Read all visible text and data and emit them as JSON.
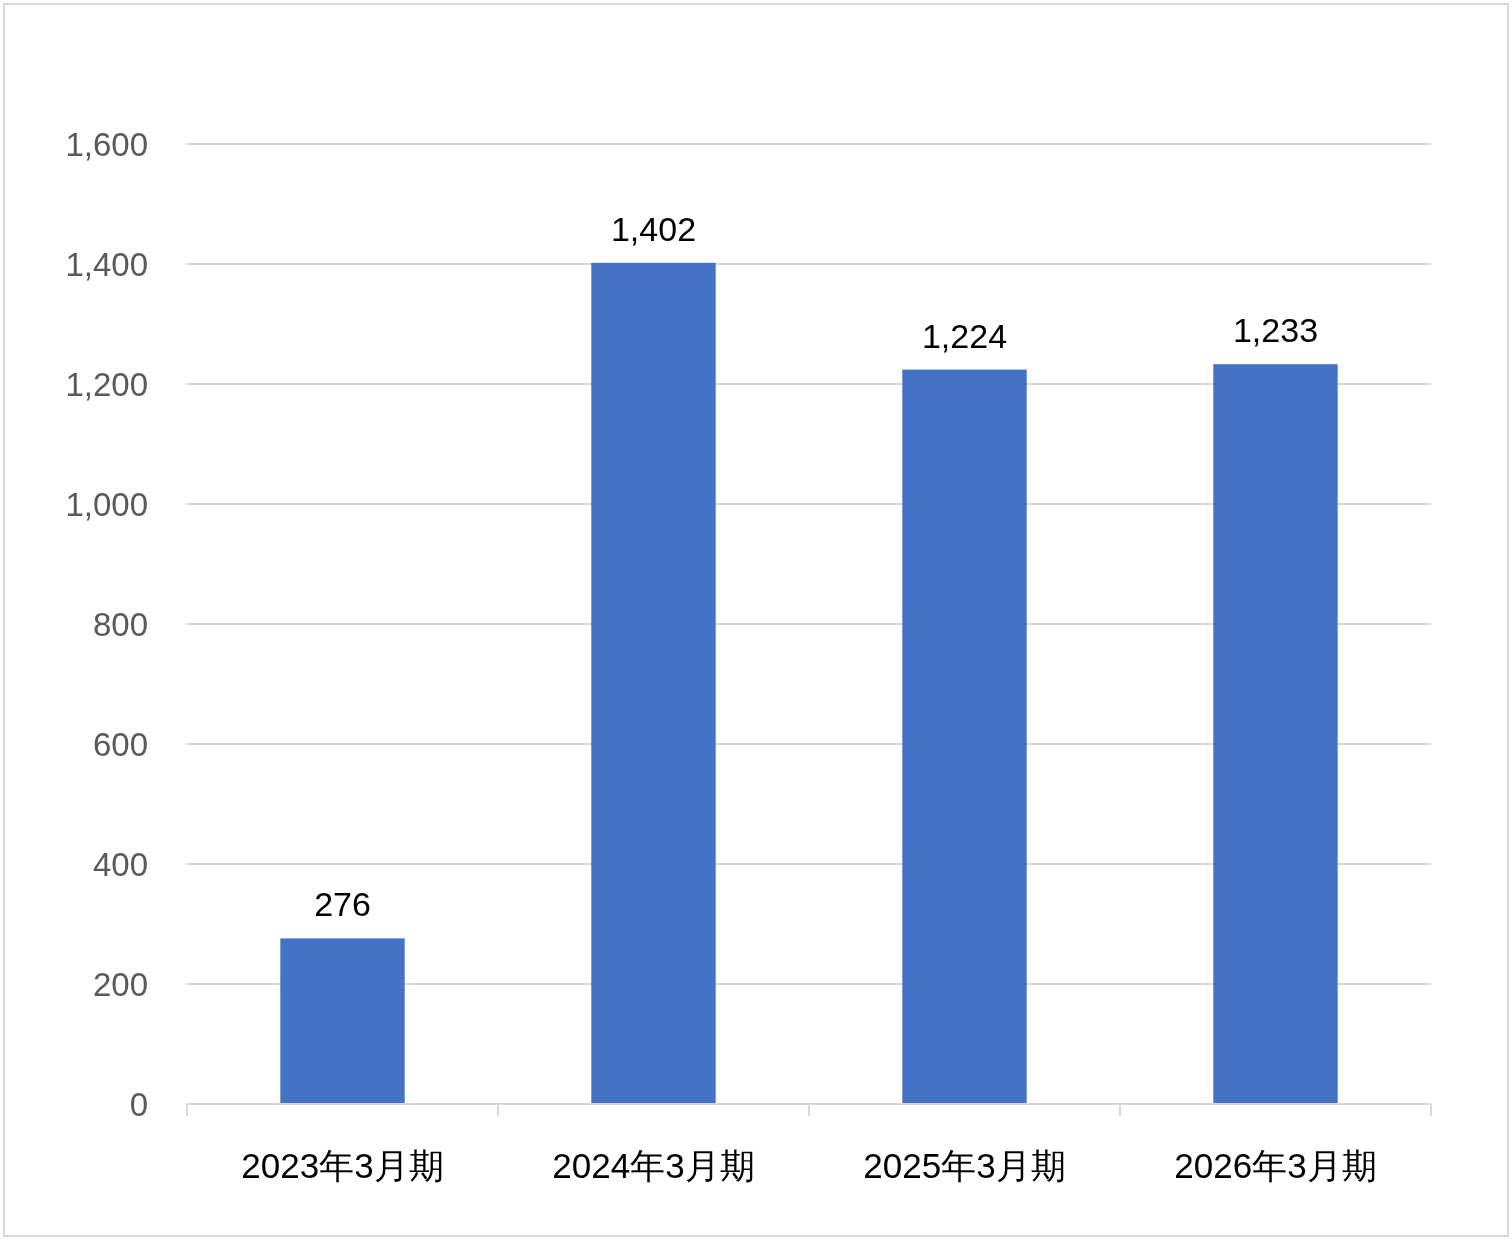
{
  "chart_data": {
    "type": "bar",
    "categories": [
      "2023年3月期",
      "2024年3月期",
      "2025年3月期",
      "2026年3月期"
    ],
    "values": [
      276,
      1402,
      1224,
      1233
    ],
    "color": "#4472c4",
    "ylim": [
      0,
      1600
    ],
    "yticks": [
      {
        "value": 0,
        "label": "0"
      },
      {
        "value": 200,
        "label": "200"
      },
      {
        "value": 400,
        "label": "400"
      },
      {
        "value": 600,
        "label": "600"
      },
      {
        "value": 800,
        "label": "800"
      },
      {
        "value": 1000,
        "label": "1,000"
      },
      {
        "value": 1200,
        "label": "1,200"
      },
      {
        "value": 1400,
        "label": "1,400"
      },
      {
        "value": 1600,
        "label": "1,600"
      }
    ],
    "grid": "y",
    "value_labels": [
      "276",
      "1,402",
      "1,224",
      "1,233"
    ]
  }
}
